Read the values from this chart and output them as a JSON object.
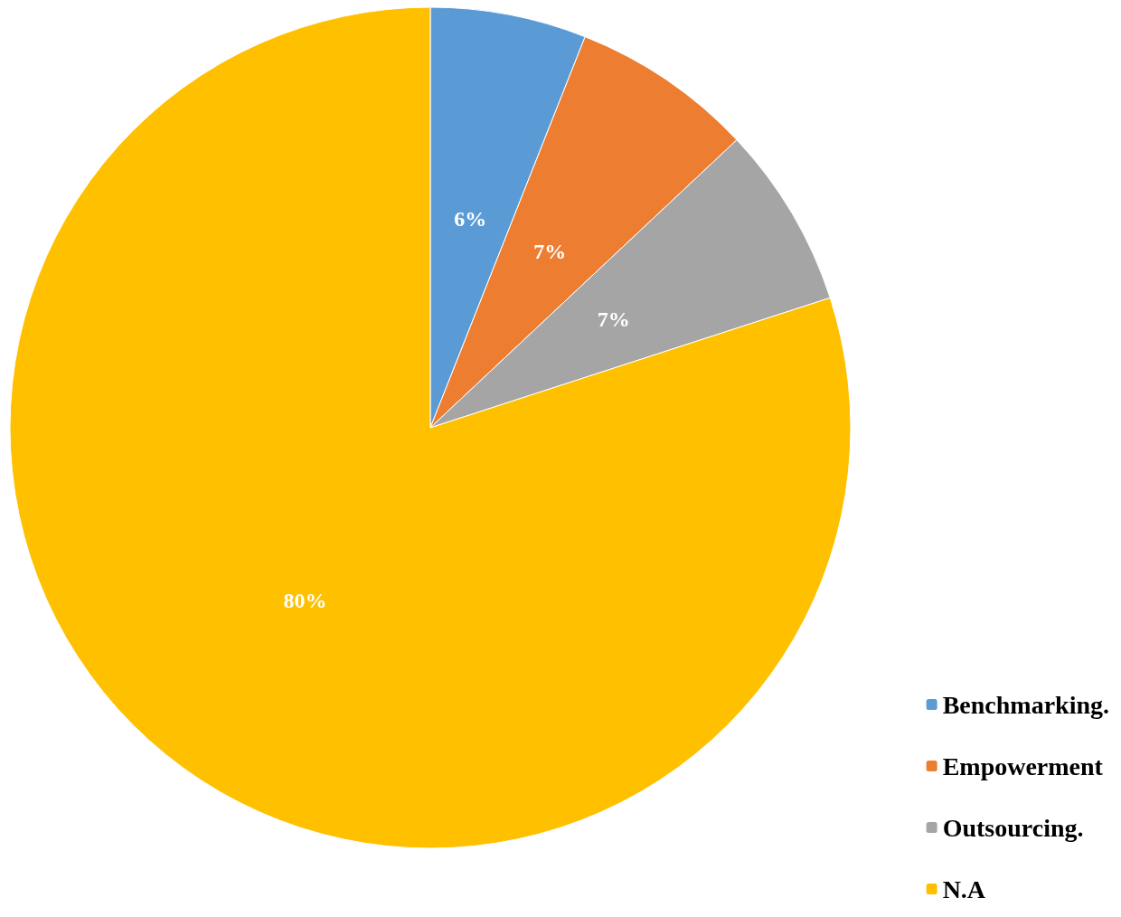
{
  "chart_data": {
    "type": "pie",
    "categories": [
      "Benchmarking.",
      "Empowerment",
      "Outsourcing.",
      "N.A"
    ],
    "values": [
      6,
      7,
      7,
      80
    ],
    "colors": [
      "#5b9bd5",
      "#ed7d31",
      "#a5a5a5",
      "#ffc000"
    ],
    "value_labels": [
      "6%",
      "7%",
      "7%",
      "80%"
    ],
    "legend": "bottom right"
  }
}
